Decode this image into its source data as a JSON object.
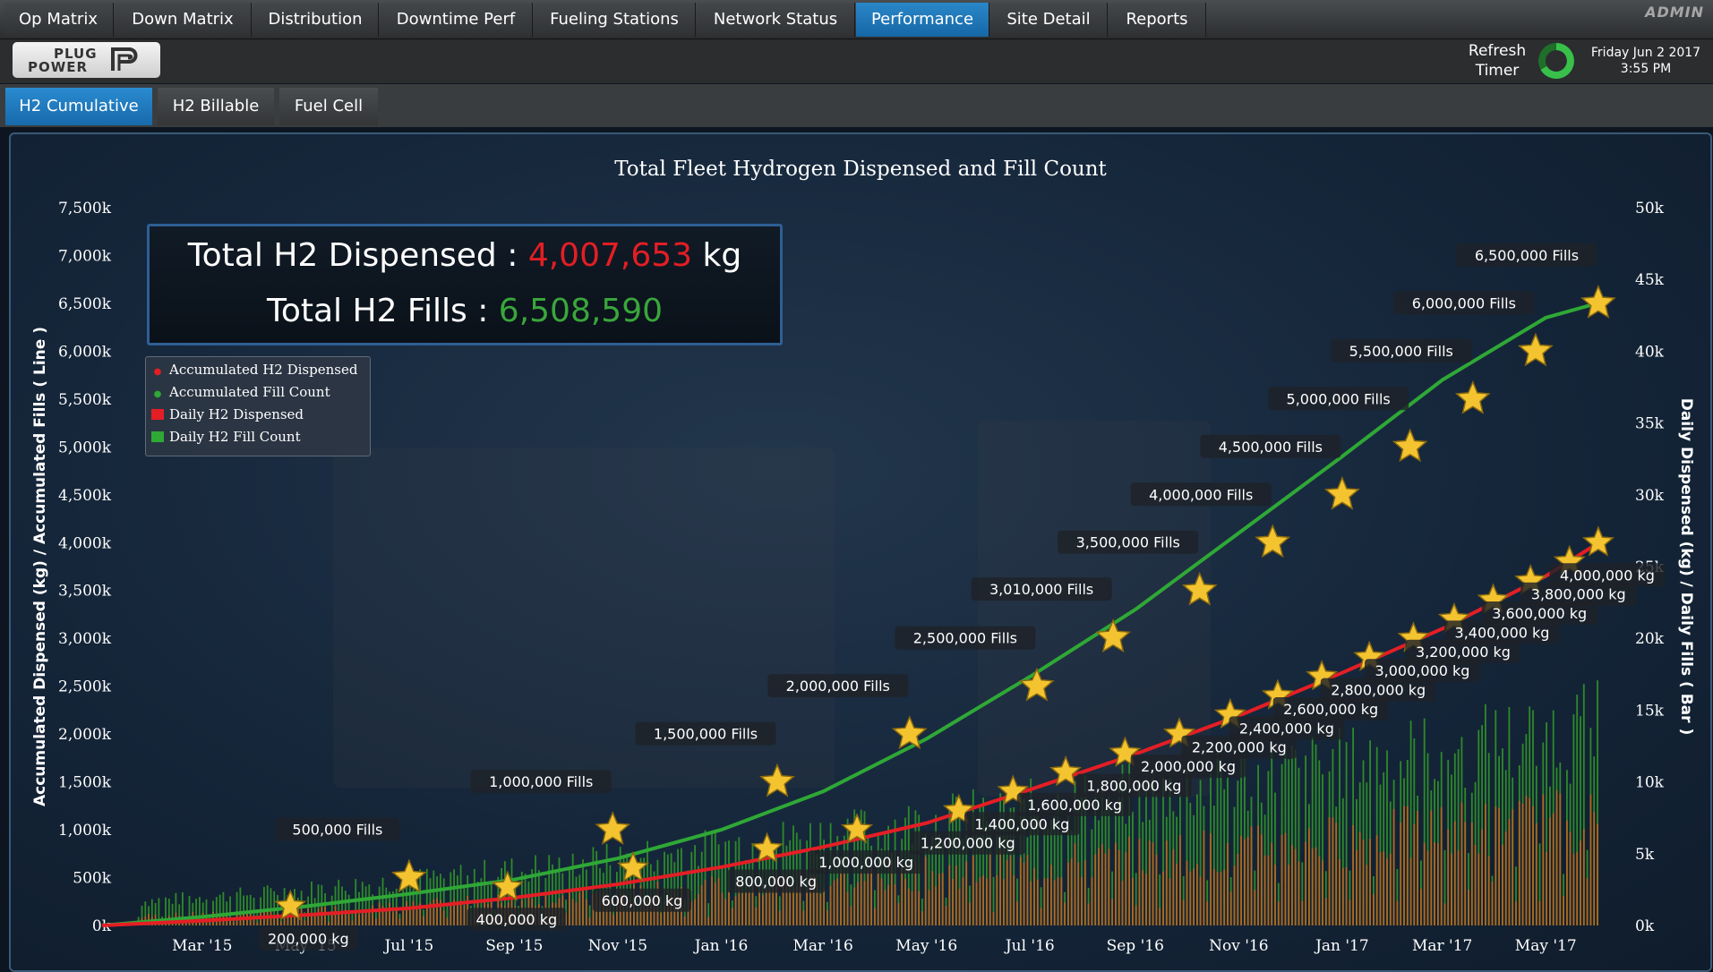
{
  "top_tabs": [
    "Op Matrix",
    "Down Matrix",
    "Distribution",
    "Downtime Perf",
    "Fueling Stations",
    "Network Status",
    "Performance",
    "Site Detail",
    "Reports"
  ],
  "active_top_tab": "Performance",
  "user_role": "ADMIN",
  "logo": {
    "line1": "PLUG",
    "line2": "POWER"
  },
  "refresh": {
    "line1": "Refresh",
    "line2": "Timer"
  },
  "datetime": {
    "date": "Friday Jun 2 2017",
    "time": "3:55 PM"
  },
  "sub_tabs": [
    "H2 Cumulative",
    "H2 Billable",
    "Fuel Cell"
  ],
  "active_sub_tab": "H2 Cumulative",
  "kpi": {
    "dispensed_label": "Total H2 Dispensed : ",
    "dispensed_value": "4,007,653",
    "dispensed_unit": " kg",
    "fills_label": "Total H2 Fills : ",
    "fills_value": "6,508,590"
  },
  "colors": {
    "accent": "#1f7bbf",
    "dispensed": "#e41e25",
    "fills": "#2fa836",
    "bar_fill": "#2d8a2a",
    "bar_dispensed": "#c8611f",
    "star": "#f4c430"
  },
  "chart_data": {
    "type": "line",
    "title": "Total Fleet Hydrogen Dispensed and Fill Count",
    "ylabel_left": "Accumulated Dispensed (kg) / Accumulated Fills ( Line )",
    "ylabel_right": "Daily Dispensed (kg) / Daily Fills ( Bar )",
    "left_ticks": [
      "0k",
      "500k",
      "1,000k",
      "1,500k",
      "2,000k",
      "2,500k",
      "3,000k",
      "3,500k",
      "4,000k",
      "4,500k",
      "5,000k",
      "5,500k",
      "6,000k",
      "6,500k",
      "7,000k",
      "7,500k"
    ],
    "right_ticks": [
      "0k",
      "5k",
      "10k",
      "15k",
      "20k",
      "25k",
      "30k",
      "35k",
      "40k",
      "45k",
      "50k"
    ],
    "x_ticks": [
      "Mar '15",
      "May '15",
      "Jul '15",
      "Sep '15",
      "Nov '15",
      "Jan '16",
      "Mar '16",
      "May '16",
      "Jul '16",
      "Sep '16",
      "Nov '16",
      "Jan '17",
      "Mar '17",
      "May '17"
    ],
    "ylim_left": [
      0,
      7500000
    ],
    "ylim_right": [
      0,
      50000
    ],
    "legend": [
      "Accumulated H2 Dispensed",
      "Accumulated Fill Count",
      "Daily H2 Dispensed",
      "Daily H2 Fill Count"
    ],
    "legend_position": "top-left",
    "series": [
      {
        "name": "Accumulated Fill Count",
        "x": [
          "2015-01-01",
          "2015-03-01",
          "2015-05-01",
          "2015-07-01",
          "2015-09-01",
          "2015-11-01",
          "2016-01-01",
          "2016-03-01",
          "2016-05-01",
          "2016-07-01",
          "2016-09-01",
          "2016-11-01",
          "2017-01-01",
          "2017-03-01",
          "2017-05-01",
          "2017-06-02"
        ],
        "y": [
          0,
          90000,
          200000,
          330000,
          480000,
          700000,
          1000000,
          1400000,
          1950000,
          2600000,
          3300000,
          4100000,
          4900000,
          5700000,
          6350000,
          6508590
        ]
      },
      {
        "name": "Accumulated H2 Dispensed",
        "x": [
          "2015-01-01",
          "2015-03-01",
          "2015-05-01",
          "2015-07-01",
          "2015-09-01",
          "2015-11-01",
          "2016-01-01",
          "2016-03-01",
          "2016-05-01",
          "2016-07-01",
          "2016-09-01",
          "2016-11-01",
          "2017-01-01",
          "2017-03-01",
          "2017-05-01",
          "2017-06-02"
        ],
        "y": [
          0,
          50000,
          110000,
          180000,
          290000,
          430000,
          610000,
          820000,
          1070000,
          1420000,
          1790000,
          2190000,
          2640000,
          3100000,
          3650000,
          4007653
        ]
      }
    ],
    "milestones_fills": [
      {
        "date": "2015-07-01",
        "value": "500,000 Fills",
        "y": 500000
      },
      {
        "date": "2015-10-29",
        "value": "1,000,000 Fills",
        "y": 1000000
      },
      {
        "date": "2016-02-03",
        "value": "1,500,000 Fills",
        "y": 1500000
      },
      {
        "date": "2016-04-21",
        "value": "2,000,000 Fills",
        "y": 2000000
      },
      {
        "date": "2016-07-05",
        "value": "2,500,000 Fills",
        "y": 2500000
      },
      {
        "date": "2016-08-19",
        "value": "3,010,000 Fills",
        "y": 3010000
      },
      {
        "date": "2016-10-09",
        "value": "3,500,000 Fills",
        "y": 3500000
      },
      {
        "date": "2016-11-21",
        "value": "4,000,000 Fills",
        "y": 4000000
      },
      {
        "date": "2017-01-01",
        "value": "4,500,000 Fills",
        "y": 4500000
      },
      {
        "date": "2017-02-10",
        "value": "5,000,000 Fills",
        "y": 5000000
      },
      {
        "date": "2017-03-19",
        "value": "5,500,000 Fills",
        "y": 5500000
      },
      {
        "date": "2017-04-25",
        "value": "6,000,000 Fills",
        "y": 6000000
      },
      {
        "date": "2017-06-01",
        "value": "6,500,000 Fills",
        "y": 6500000
      }
    ],
    "milestones_kg": [
      {
        "date": "2015-04-22",
        "value": "200,000 kg",
        "y": 200000
      },
      {
        "date": "2015-08-28",
        "value": "400,000 kg",
        "y": 400000
      },
      {
        "date": "2015-11-10",
        "value": "600,000 kg",
        "y": 600000
      },
      {
        "date": "2016-01-28",
        "value": "800,000 kg",
        "y": 800000
      },
      {
        "date": "2016-03-21",
        "value": "1,000,000 kg",
        "y": 1000000
      },
      {
        "date": "2016-05-20",
        "value": "1,200,000 kg",
        "y": 1200000
      },
      {
        "date": "2016-06-21",
        "value": "1,400,000 kg",
        "y": 1400000
      },
      {
        "date": "2016-07-22",
        "value": "1,600,000 kg",
        "y": 1600000
      },
      {
        "date": "2016-08-26",
        "value": "1,800,000 kg",
        "y": 1800000
      },
      {
        "date": "2016-09-27",
        "value": "2,000,000 kg",
        "y": 2000000
      },
      {
        "date": "2016-10-27",
        "value": "2,200,000 kg",
        "y": 2200000
      },
      {
        "date": "2016-11-24",
        "value": "2,400,000 kg",
        "y": 2400000
      },
      {
        "date": "2016-12-20",
        "value": "2,600,000 kg",
        "y": 2600000
      },
      {
        "date": "2017-01-17",
        "value": "2,800,000 kg",
        "y": 2800000
      },
      {
        "date": "2017-02-12",
        "value": "3,000,000 kg",
        "y": 3000000
      },
      {
        "date": "2017-03-08",
        "value": "3,200,000 kg",
        "y": 3200000
      },
      {
        "date": "2017-03-31",
        "value": "3,400,000 kg",
        "y": 3400000
      },
      {
        "date": "2017-04-22",
        "value": "3,600,000 kg",
        "y": 3600000
      },
      {
        "date": "2017-05-15",
        "value": "3,800,000 kg",
        "y": 3800000
      },
      {
        "date": "2017-06-01",
        "value": "4,000,000 kg",
        "y": 4000000
      }
    ],
    "daily_bars": {
      "description_start": "2015-01-01",
      "end": "2017-06-02",
      "fills_approx_range": [
        1000,
        14000
      ],
      "dispensed_approx_range": [
        500,
        9000
      ]
    }
  }
}
